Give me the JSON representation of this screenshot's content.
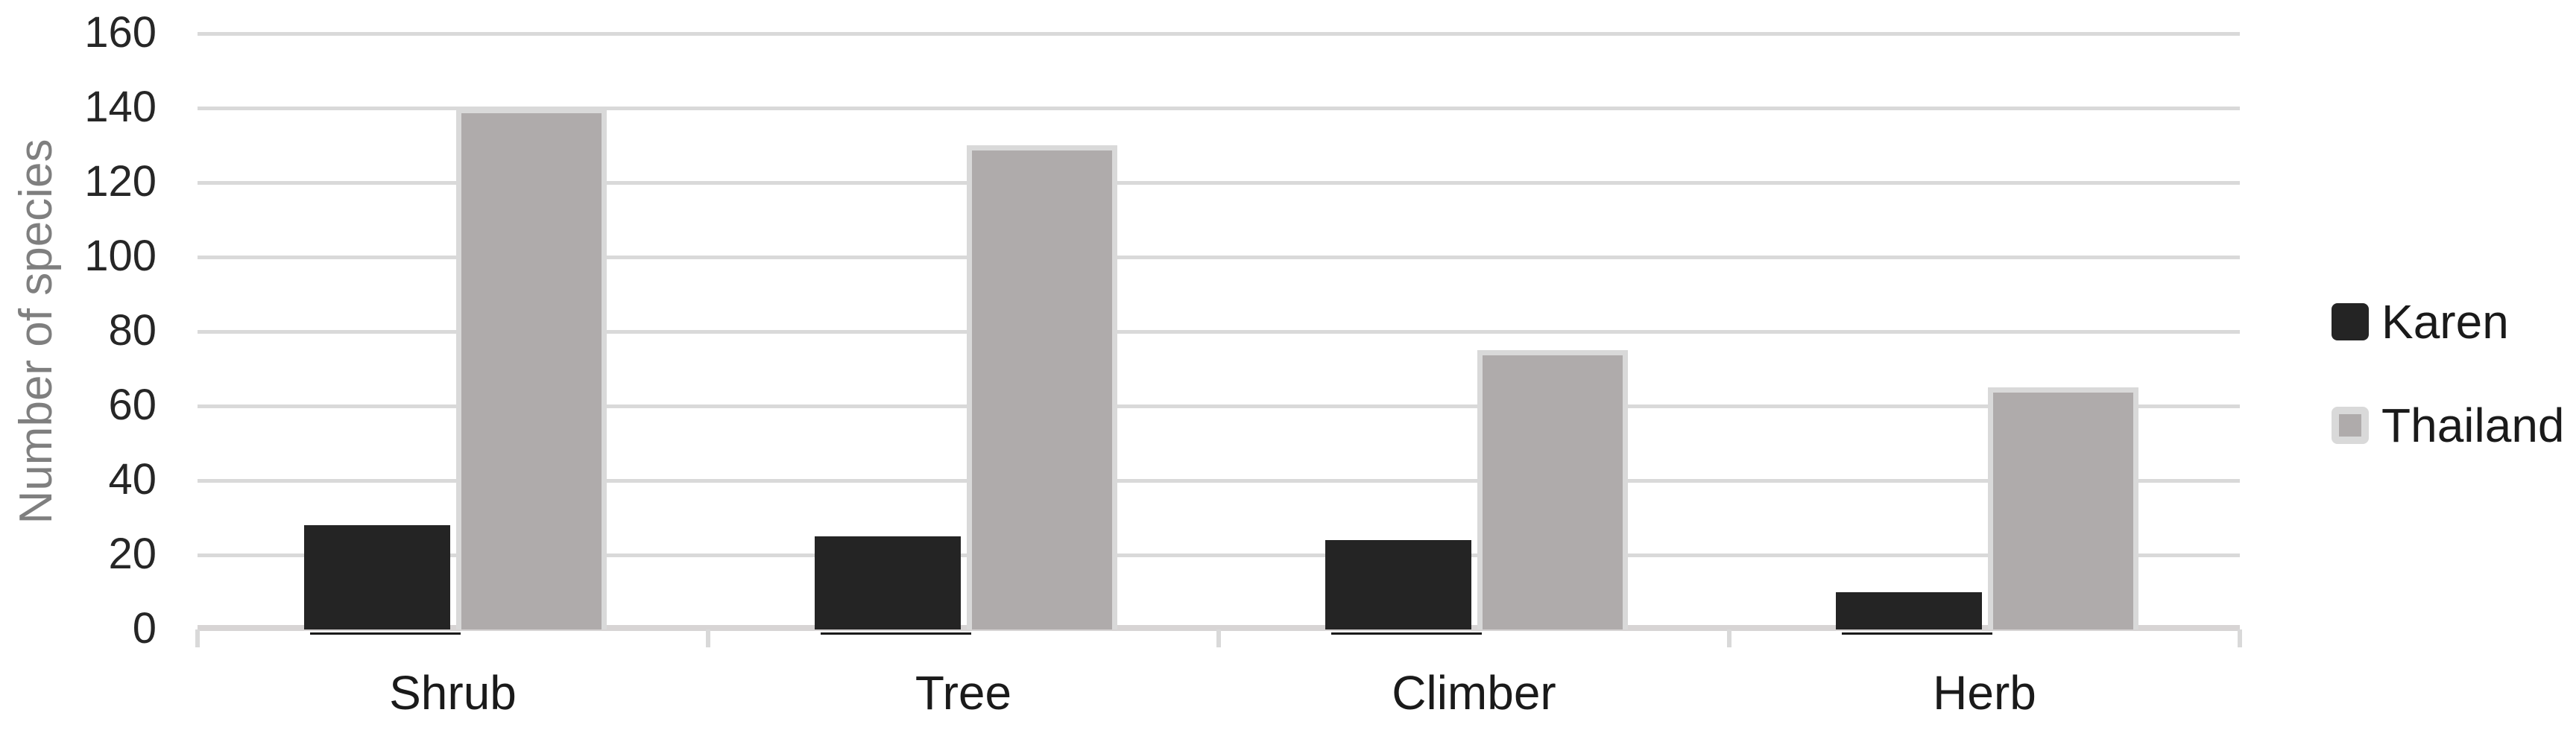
{
  "chart_data": {
    "type": "bar",
    "title": "",
    "categories": [
      "Shrub",
      "Tree",
      "Climber",
      "Herb"
    ],
    "series": [
      {
        "name": "Karen",
        "color": "#242424",
        "values": [
          28,
          25,
          24,
          10
        ]
      },
      {
        "name": "Thailand",
        "color": "#afabab",
        "border_color": "#d9d9d9",
        "values": [
          140,
          130,
          75,
          65
        ]
      }
    ],
    "xlabel": "",
    "ylabel": "Number of species",
    "ylim": [
      0,
      160
    ],
    "ytick_step": 20,
    "ytick_labels": [
      "0",
      "20",
      "40",
      "60",
      "80",
      "100",
      "120",
      "140",
      "160"
    ],
    "grid": "horizontal",
    "legend_position": "right"
  },
  "colors": {
    "background": "#ffffff",
    "gridline": "#d9d9d9",
    "axis_line": "#d7d4d4",
    "tick_mark": "#d9d9d9",
    "y_tick_label": "#262626",
    "x_label": "#1a1a1a",
    "y_axis_title": "#7f7f7f",
    "legend_text": "#1a1a1a"
  }
}
